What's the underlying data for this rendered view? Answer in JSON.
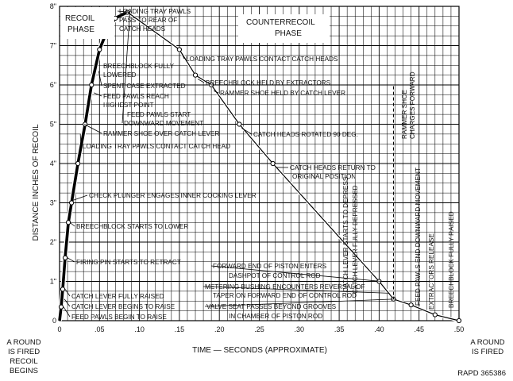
{
  "chart_data": {
    "type": "line",
    "xlabel": "TIME — SECONDS (APPROXIMATE)",
    "ylabel": "DISTANCE INCHES OF RECOIL",
    "xlim": [
      0,
      0.5
    ],
    "ylim": [
      0,
      8
    ],
    "grid": true,
    "x_ticks": [
      "0",
      ".05",
      ".10",
      ".15",
      ".20",
      ".25",
      ".30",
      ".35",
      ".40",
      ".45",
      ".50"
    ],
    "y_ticks": [
      "0",
      "1\"",
      "2\"",
      "3\"",
      "4\"",
      "5\"",
      "6\"",
      "7\"",
      "8\""
    ],
    "series": [
      {
        "style": "thick",
        "points": [
          [
            0.0,
            0.0
          ],
          [
            0.002,
            0.35
          ],
          [
            0.004,
            0.8
          ],
          [
            0.007,
            1.6
          ],
          [
            0.011,
            2.5
          ],
          [
            0.015,
            3.0
          ],
          [
            0.023,
            4.0
          ],
          [
            0.032,
            5.0
          ],
          [
            0.04,
            6.0
          ],
          [
            0.05,
            6.9
          ],
          [
            0.06,
            7.4
          ],
          [
            0.07,
            7.7
          ],
          [
            0.085,
            7.85
          ]
        ]
      },
      {
        "style": "thin",
        "points": [
          [
            0.085,
            7.85
          ],
          [
            0.15,
            6.9
          ],
          [
            0.17,
            6.25
          ],
          [
            0.19,
            6.0
          ],
          [
            0.225,
            5.0
          ],
          [
            0.267,
            4.0
          ],
          [
            0.4,
            1.0
          ],
          [
            0.418,
            0.55
          ],
          [
            0.44,
            0.4
          ],
          [
            0.47,
            0.15
          ],
          [
            0.5,
            0.0
          ]
        ]
      }
    ],
    "dashed_connectors": [
      {
        "points": [
          [
            0.19,
            6.0
          ],
          [
            0.418,
            6.0
          ],
          [
            0.418,
            0.55
          ]
        ]
      },
      {
        "points": [
          [
            0.418,
            6.0
          ],
          [
            0.43,
            6.0
          ]
        ]
      }
    ],
    "annotations": [
      {
        "text": "LOADING TRAY PAWLS",
        "at": [
          0.085,
          7.85
        ]
      },
      {
        "text": "PASS TO REAR OF",
        "at": [
          0.085,
          7.85
        ]
      },
      {
        "text": "CATCH HEADS",
        "at": [
          0.085,
          7.85
        ]
      },
      {
        "text": "BREECHBLOCK FULLY",
        "at": [
          0.055,
          7.1
        ]
      },
      {
        "text": "LOWERED",
        "at": [
          0.055,
          7.1
        ]
      },
      {
        "text": "SPENT CASE EXTRACTED",
        "at": [
          0.046,
          6.35
        ]
      },
      {
        "text": "FEED PAWLS REACH",
        "at": [
          0.04,
          5.8
        ]
      },
      {
        "text": "HIGHEST POINT",
        "at": [
          0.04,
          5.8
        ]
      },
      {
        "text": "FEED PAWLS START",
        "at": [
          0.085,
          7.85
        ]
      },
      {
        "text": "DOWNWARD MOVEMENT",
        "at": [
          0.085,
          7.85
        ]
      },
      {
        "text": "RAMMER SHOE OVER CATCH LEVER",
        "at": [
          0.028,
          5.0
        ]
      },
      {
        "text": "LOADING TRAY PAWLS CONTACT CATCH HEAD",
        "at": [
          0.023,
          4.75
        ]
      },
      {
        "text": "CHECK PLUNGER ENGAGES INNER COCKING LEVER",
        "at": [
          0.012,
          3.05
        ]
      },
      {
        "text": "BREECHBLOCK STARTS TO LOWER",
        "at": [
          0.01,
          2.5
        ]
      },
      {
        "text": "FIRING PIN STARTS TO RETRACT",
        "at": [
          0.007,
          1.6
        ]
      },
      {
        "text": "CATCH LEVER FULLY RAISED",
        "at": [
          0.004,
          0.8
        ]
      },
      {
        "text": "CATCH LEVER BEGINS TO RAISE",
        "at": [
          0.003,
          0.55
        ]
      },
      {
        "text": "FEED PAWLS BEGIN TO RAISE",
        "at": [
          0.002,
          0.35
        ]
      },
      {
        "text": "LOADING TRAY PAWLS CONTACT CATCH HEADS",
        "at": [
          0.15,
          6.8
        ]
      },
      {
        "text": "BREECHBLOCK HELD BY EXTRACTORS",
        "at": [
          0.17,
          6.15
        ]
      },
      {
        "text": "RAMMER SHOE HELD BY CATCH LEVER",
        "at": [
          0.19,
          5.85
        ]
      },
      {
        "text": "CATCH HEADS ROTATED 90 DEG.",
        "at": [
          0.225,
          4.9
        ]
      },
      {
        "text": "CATCH HEADS RETURN TO",
        "at": [
          0.267,
          3.9
        ]
      },
      {
        "text": "ORIGINAL POSITION",
        "at": [
          0.267,
          3.9
        ]
      },
      {
        "text": "FORWARD END OF PISTON ENTERS",
        "at": [
          0.4,
          1.0
        ]
      },
      {
        "text": "DASHPOT OF CONTROL ROD",
        "at": [
          0.4,
          1.0
        ]
      },
      {
        "text": "METERING BUSHING ENCOUNTERS REVERSAL OF",
        "at": [
          0.41,
          0.7
        ]
      },
      {
        "text": "TAPER ON FORWARD END OF CONTROL ROD",
        "at": [
          0.41,
          0.7
        ]
      },
      {
        "text": "VALVE SEAT PASSES BEYOND GROOVES",
        "at": [
          0.418,
          0.55
        ]
      },
      {
        "text": "IN CHAMBER OF PISTON ROD",
        "at": [
          0.418,
          0.55
        ]
      },
      {
        "text": "CATCH LEVER STARTS TO DEPRESS",
        "at": [
          0.405,
          0.9
        ]
      },
      {
        "text": "CATCH LEVER FULLY DEPRESSED",
        "at": [
          0.412,
          0.7
        ]
      },
      {
        "text": "RAMMER SHOE",
        "at": [
          0.43,
          6.0
        ]
      },
      {
        "text": "CHARGES FORWARD",
        "at": [
          0.43,
          6.0
        ]
      },
      {
        "text": "FEED PAWLS END DOWNWARD MOVEMENT",
        "at": [
          0.44,
          0.4
        ]
      },
      {
        "text": "EXTRACTORS RELEASE",
        "at": [
          0.47,
          0.15
        ]
      },
      {
        "text": "BREECHBLOCK FULLY RAISED",
        "at": [
          0.485,
          0.08
        ]
      }
    ]
  },
  "phases": {
    "recoil_line1": "RECOIL",
    "recoil_line2": "PHASE",
    "counter_line1": "COUNTERRECOIL",
    "counter_line2": "PHASE"
  },
  "left_caption": [
    "A ROUND",
    "IS FIRED",
    "RECOIL",
    "BEGINS"
  ],
  "right_caption": [
    "A ROUND",
    "IS FIRED"
  ],
  "figure_id": "RAPD 365386"
}
